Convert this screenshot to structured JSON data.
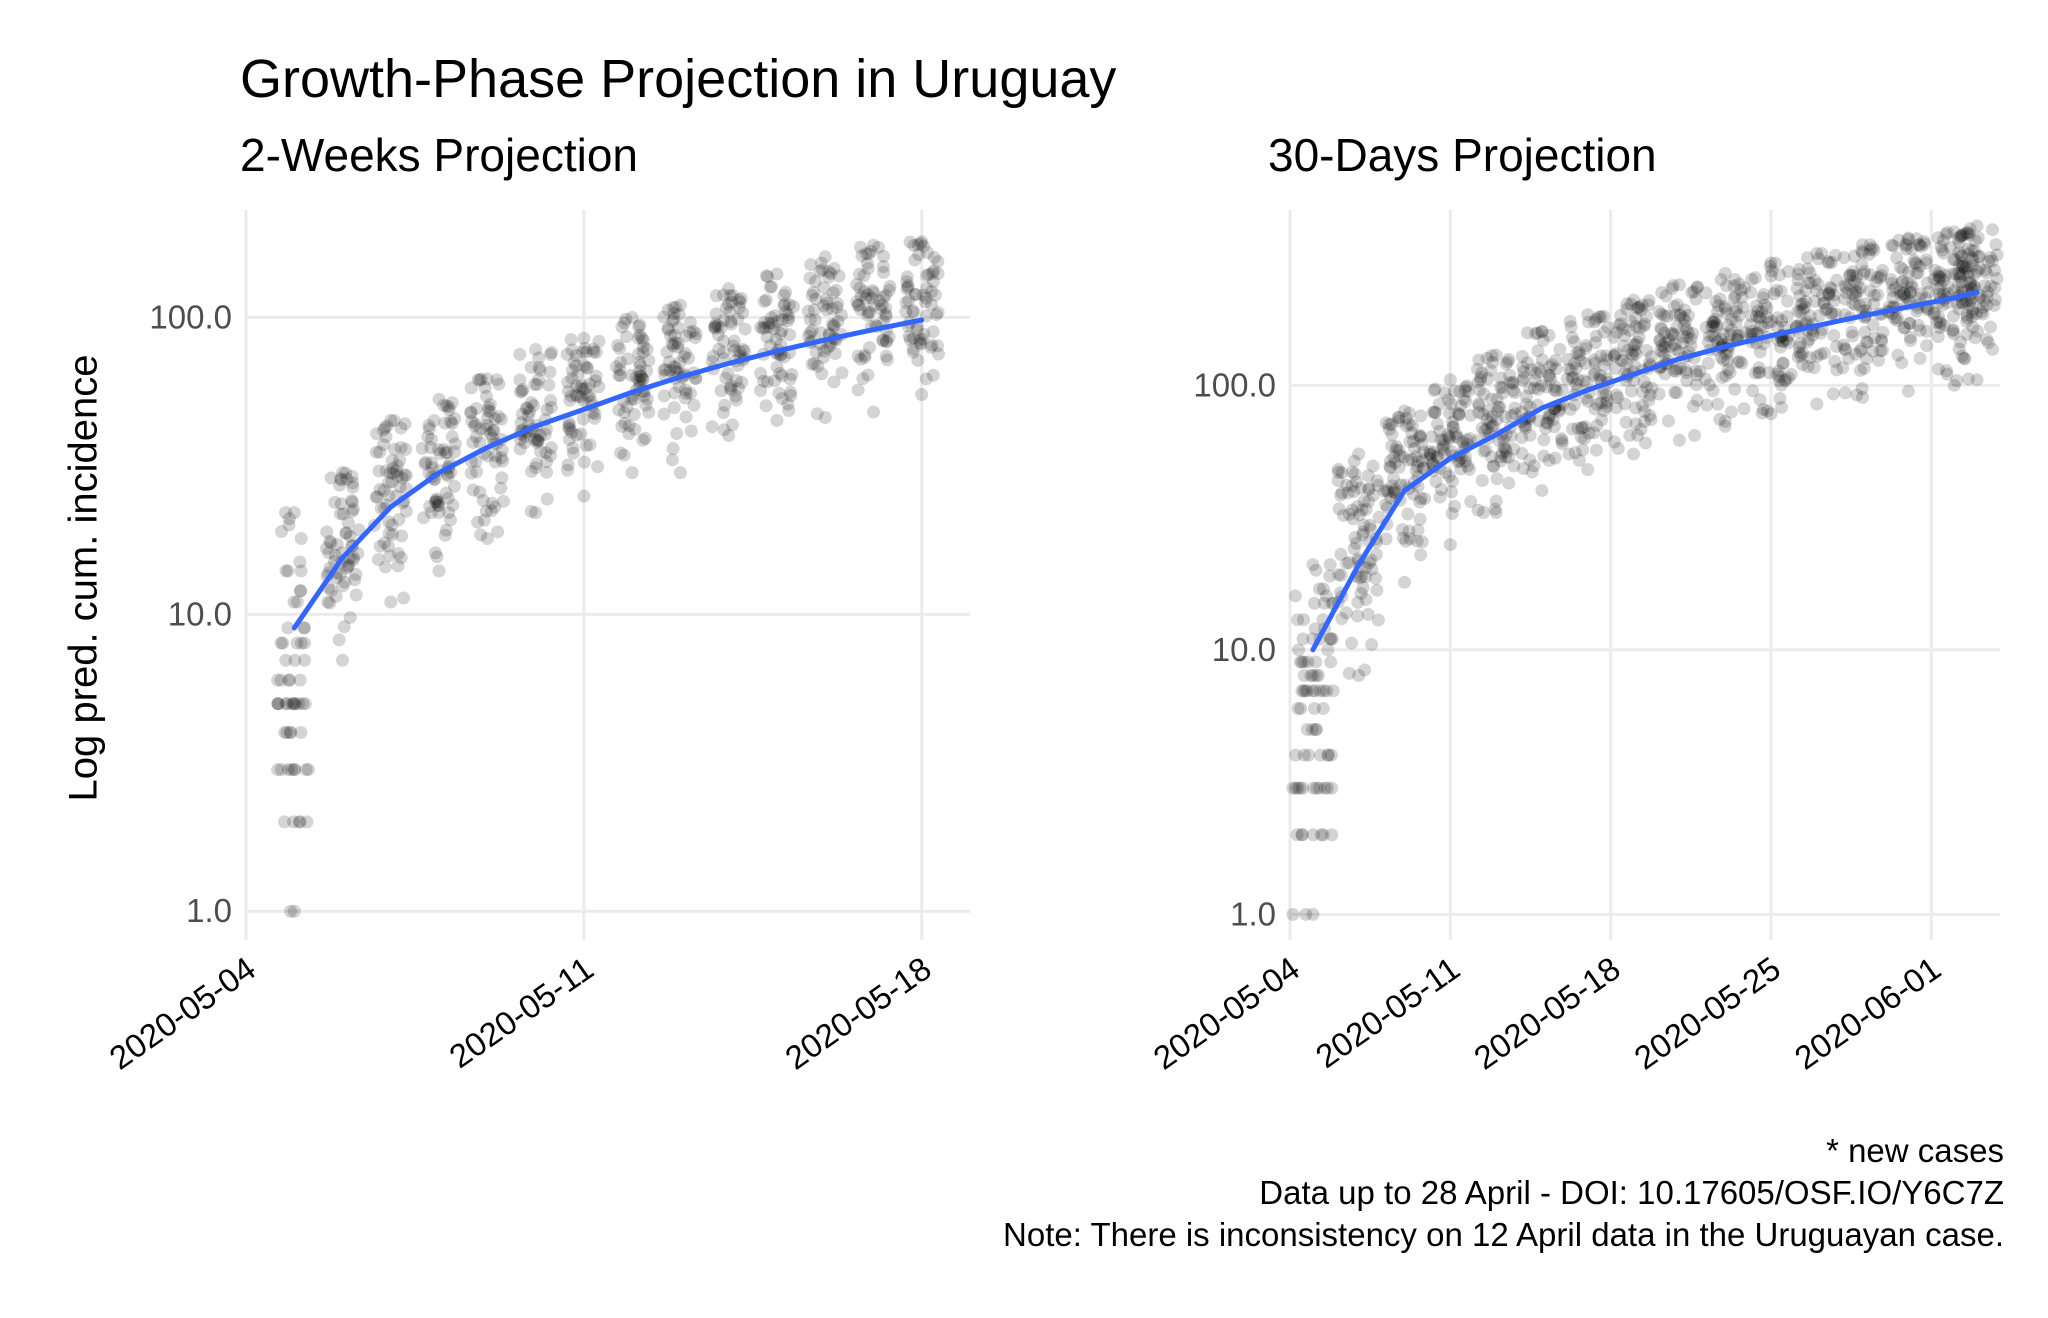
{
  "title": "Growth-Phase Projection in Uruguay",
  "ylabel": "Log pred. cum. incidence",
  "caption": [
    "* new cases",
    "Data up to 28 April - DOI: 10.17605/OSF.IO/Y6C7Z",
    "Note: There is inconsistency on 12 April data in the Uruguayan case."
  ],
  "colors": {
    "smooth_line": "#3366ff",
    "points": "#000000",
    "grid": "#ebebeb"
  },
  "chart_data": [
    {
      "type": "scatter",
      "title": "2-Weeks Projection",
      "ylabel": "Log pred. cum. incidence",
      "y_scale": "log10",
      "yticks": [
        1.0,
        10.0,
        100.0
      ],
      "ytick_labels": [
        "1.0",
        "10.0",
        "100.0"
      ],
      "xticks": [
        "2020-05-04",
        "2020-05-11",
        "2020-05-18"
      ],
      "xlim": [
        "2020-05-04",
        "2020-05-19"
      ],
      "ylim": [
        0.8,
        230
      ],
      "grid": true,
      "points_description": "simulated projections per day (semi-transparent)",
      "smooth_line": {
        "x": [
          "2020-05-05",
          "2020-05-06",
          "2020-05-07",
          "2020-05-08",
          "2020-05-09",
          "2020-05-10",
          "2020-05-11",
          "2020-05-12",
          "2020-05-13",
          "2020-05-14",
          "2020-05-15",
          "2020-05-16",
          "2020-05-17",
          "2020-05-18"
        ],
        "y": [
          9,
          15.5,
          23,
          30,
          36.5,
          43,
          49,
          56,
          63,
          70,
          77,
          84,
          91,
          98
        ]
      },
      "point_ranges": {
        "x": [
          "2020-05-05",
          "2020-05-06",
          "2020-05-07",
          "2020-05-08",
          "2020-05-09",
          "2020-05-10",
          "2020-05-11",
          "2020-05-12",
          "2020-05-13",
          "2020-05-14",
          "2020-05-15",
          "2020-05-16",
          "2020-05-17",
          "2020-05-18"
        ],
        "low": [
          1,
          7,
          11,
          14,
          18,
          22,
          25,
          30,
          30,
          40,
          45,
          46,
          48,
          55
        ],
        "high": [
          22,
          30,
          45,
          53,
          62,
          78,
          85,
          100,
          110,
          125,
          140,
          160,
          175,
          180
        ]
      }
    },
    {
      "type": "scatter",
      "title": "30-Days Projection",
      "ylabel": "",
      "y_scale": "log10",
      "yticks": [
        1.0,
        10.0,
        100.0
      ],
      "ytick_labels": [
        "1.0",
        "10.0",
        "100.0"
      ],
      "xticks": [
        "2020-05-04",
        "2020-05-11",
        "2020-05-18",
        "2020-05-25",
        "2020-06-01"
      ],
      "xlim": [
        "2020-05-04",
        "2020-06-04"
      ],
      "ylim": [
        0.8,
        460
      ],
      "grid": true,
      "points_description": "simulated projections per day (semi-transparent)",
      "smooth_line": {
        "x": [
          "2020-05-05",
          "2020-05-07",
          "2020-05-09",
          "2020-05-11",
          "2020-05-13",
          "2020-05-15",
          "2020-05-17",
          "2020-05-19",
          "2020-05-21",
          "2020-05-23",
          "2020-05-25",
          "2020-05-27",
          "2020-05-29",
          "2020-05-31",
          "2020-06-02",
          "2020-06-03"
        ],
        "y": [
          10,
          21,
          40,
          53,
          65,
          82,
          96,
          110,
          126,
          140,
          154,
          168,
          183,
          198,
          214,
          225
        ]
      },
      "point_ranges": {
        "x": [
          "2020-05-05",
          "2020-05-07",
          "2020-05-09",
          "2020-05-11",
          "2020-05-13",
          "2020-05-15",
          "2020-05-17",
          "2020-05-19",
          "2020-05-21",
          "2020-05-23",
          "2020-05-25",
          "2020-05-27",
          "2020-05-29",
          "2020-05-31",
          "2020-06-02",
          "2020-06-03"
        ],
        "low": [
          1,
          8,
          18,
          25,
          33,
          40,
          48,
          55,
          62,
          70,
          78,
          85,
          90,
          95,
          100,
          105
        ],
        "high": [
          21,
          55,
          80,
          105,
          130,
          160,
          185,
          210,
          240,
          265,
          290,
          315,
          340,
          360,
          380,
          400
        ]
      }
    }
  ]
}
